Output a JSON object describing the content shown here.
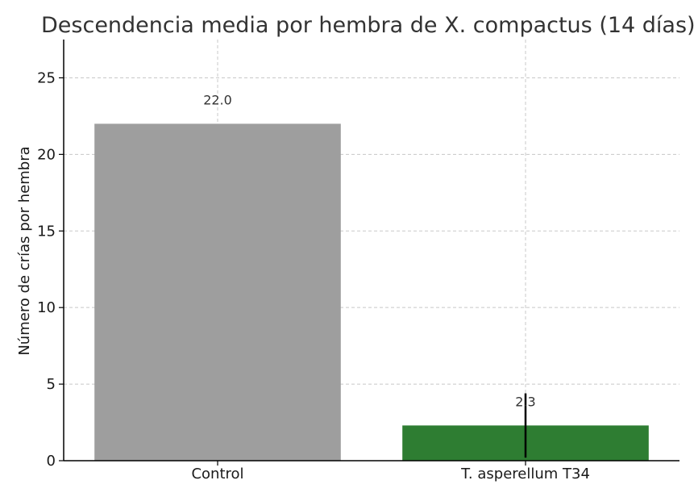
{
  "chart_data": {
    "type": "bar",
    "title": "Descendencia media por hembra de X. compactus (14 días)",
    "xlabel": "",
    "ylabel": "Número de crías por hembra",
    "categories": [
      "Control",
      "T. asperellum T34"
    ],
    "values": [
      22.0,
      2.3
    ],
    "value_labels": [
      "22.0",
      "2.3"
    ],
    "error_bars": [
      null,
      2.1
    ],
    "colors": [
      "#9e9e9e",
      "#2e7d32"
    ],
    "error_color": "#000000",
    "ylim": [
      0,
      27.5
    ],
    "yticks": [
      0,
      5,
      10,
      15,
      20,
      25
    ],
    "ytick_labels": [
      "0",
      "5",
      "10",
      "15",
      "20",
      "25"
    ],
    "grid": true,
    "legend": "none"
  }
}
